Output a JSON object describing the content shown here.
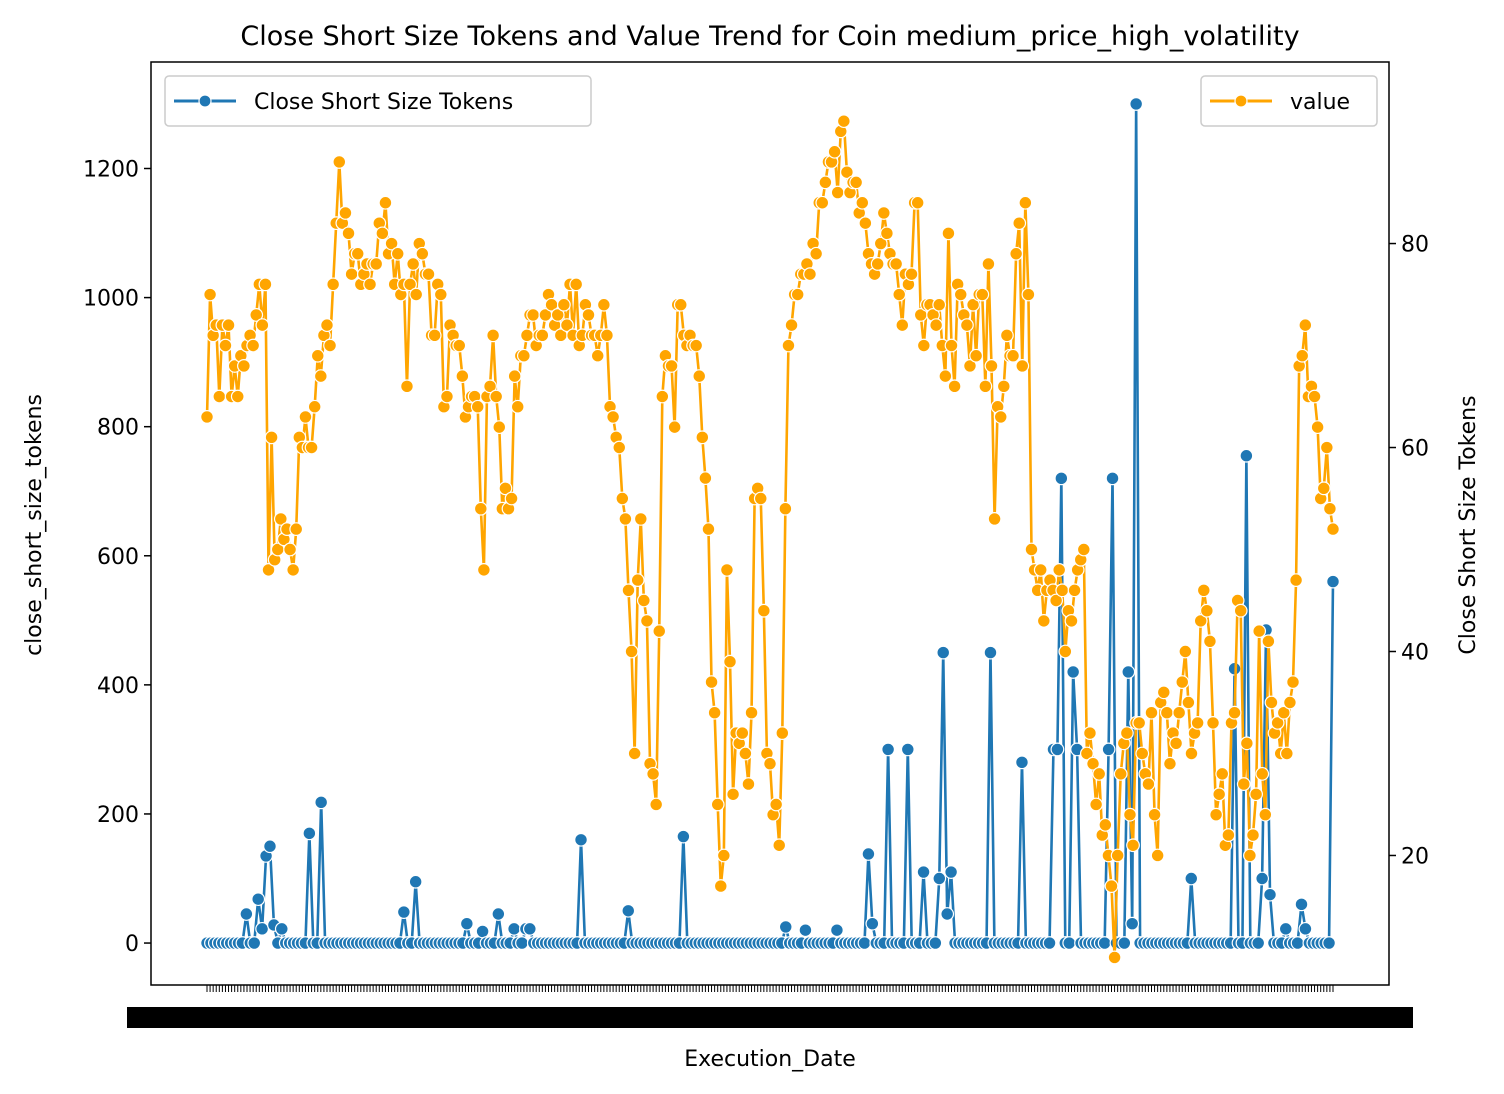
{
  "chart_data": {
    "type": "line",
    "title": "Close Short Size Tokens and Value Trend for Coin medium_price_high_volatility",
    "xlabel": "Execution_Date",
    "ylabel_left": "close_short_size_tokens",
    "ylabel_right": "Close Short Size Tokens",
    "ylim_left": [
      -65,
      1365
    ],
    "ylim_right": [
      7.3,
      97.8
    ],
    "yticks_left": [
      0,
      200,
      400,
      600,
      800,
      1000,
      1200
    ],
    "yticks_right": [
      20,
      40,
      60,
      80
    ],
    "grid": false,
    "x_tick_labels_note": "dense, overlapping date tick labels (unreadable)",
    "legends": [
      {
        "placement": "upper-left",
        "label": "Close Short Size Tokens",
        "color": "#1f77b4"
      },
      {
        "placement": "upper-right",
        "label": "value",
        "color": "#ffa500"
      }
    ],
    "series": [
      {
        "name": "Close Short Size Tokens",
        "axis": "left",
        "color": "#1f77b4",
        "marker": "circle",
        "values": [
          0,
          0,
          0,
          0,
          0,
          0,
          0,
          0,
          0,
          0,
          45,
          0,
          0,
          68,
          22,
          135,
          150,
          28,
          0,
          22,
          0,
          0,
          0,
          0,
          0,
          0,
          170,
          0,
          0,
          218,
          0,
          0,
          0,
          0,
          0,
          0,
          0,
          0,
          0,
          0,
          0,
          0,
          0,
          0,
          0,
          0,
          0,
          0,
          0,
          0,
          48,
          0,
          0,
          95,
          0,
          0,
          0,
          0,
          0,
          0,
          0,
          0,
          0,
          0,
          0,
          0,
          30,
          0,
          0,
          0,
          18,
          0,
          0,
          0,
          45,
          0,
          0,
          0,
          22,
          0,
          0,
          22,
          22,
          0,
          0,
          0,
          0,
          0,
          0,
          0,
          0,
          0,
          0,
          0,
          0,
          160,
          0,
          0,
          0,
          0,
          0,
          0,
          0,
          0,
          0,
          0,
          0,
          50,
          0,
          0,
          0,
          0,
          0,
          0,
          0,
          0,
          0,
          0,
          0,
          0,
          0,
          165,
          0,
          0,
          0,
          0,
          0,
          0,
          0,
          0,
          0,
          0,
          0,
          0,
          0,
          0,
          0,
          0,
          0,
          0,
          0,
          0,
          0,
          0,
          0,
          0,
          0,
          25,
          0,
          0,
          0,
          0,
          20,
          0,
          0,
          0,
          0,
          0,
          0,
          0,
          20,
          0,
          0,
          0,
          0,
          0,
          0,
          0,
          138,
          30,
          0,
          0,
          0,
          300,
          0,
          0,
          0,
          0,
          300,
          0,
          0,
          0,
          110,
          0,
          0,
          0,
          100,
          450,
          45,
          110,
          0,
          0,
          0,
          0,
          0,
          0,
          0,
          0,
          0,
          450,
          0,
          0,
          0,
          0,
          0,
          0,
          0,
          280,
          0,
          0,
          0,
          0,
          0,
          0,
          0,
          300,
          300,
          720,
          0,
          0,
          420,
          300,
          0,
          0,
          0,
          0,
          0,
          0,
          0,
          300,
          720,
          0,
          0,
          0,
          420,
          30,
          1300,
          0,
          0,
          0,
          0,
          0,
          0,
          0,
          0,
          0,
          0,
          0,
          0,
          0,
          100,
          0,
          0,
          0,
          0,
          0,
          0,
          0,
          0,
          0,
          0,
          425,
          0,
          0,
          755,
          0,
          0,
          0,
          100,
          485,
          75,
          0,
          0,
          0,
          22,
          0,
          0,
          0,
          60,
          22,
          0,
          0,
          0,
          0,
          0,
          0,
          560
        ]
      },
      {
        "name": "value",
        "axis": "right",
        "color": "#ffa500",
        "marker": "circle",
        "values": [
          63,
          75,
          71,
          72,
          65,
          72,
          70,
          72,
          65,
          68,
          65,
          69,
          68,
          70,
          71,
          70,
          73,
          76,
          72,
          76,
          48,
          61,
          49,
          50,
          53,
          51,
          52,
          50,
          48,
          52,
          61,
          60,
          63,
          60,
          60,
          64,
          69,
          67,
          71,
          72,
          70,
          76,
          82,
          88,
          82,
          83,
          81,
          77,
          79,
          79,
          76,
          77,
          78,
          76,
          78,
          78,
          82,
          81,
          84,
          79,
          80,
          76,
          79,
          75,
          76,
          66,
          76,
          78,
          75,
          80,
          79,
          77,
          77,
          71,
          71,
          76,
          75,
          64,
          65,
          72,
          71,
          70,
          70,
          67,
          63,
          64,
          65,
          65,
          64,
          54,
          48,
          65,
          66,
          71,
          65,
          62,
          54,
          56,
          54,
          55,
          67,
          64,
          69,
          69,
          71,
          73,
          73,
          70,
          71,
          71,
          73,
          75,
          74,
          72,
          73,
          71,
          74,
          72,
          76,
          71,
          76,
          70,
          71,
          74,
          73,
          71,
          71,
          69,
          71,
          74,
          71,
          64,
          63,
          61,
          60,
          55,
          53,
          46,
          40,
          30,
          47,
          53,
          45,
          43,
          29,
          28,
          25,
          42,
          65,
          69,
          68,
          68,
          62,
          74,
          74,
          71,
          70,
          71,
          70,
          70,
          67,
          61,
          57,
          52,
          37,
          34,
          25,
          17,
          20,
          48,
          39,
          26,
          32,
          31,
          32,
          30,
          27,
          34,
          55,
          56,
          55,
          44,
          30,
          29,
          24,
          25,
          21,
          32,
          54,
          70,
          72,
          75,
          75,
          77,
          77,
          78,
          77,
          80,
          79,
          84,
          84,
          86,
          88,
          88,
          89,
          85,
          91,
          92,
          87,
          85,
          86,
          86,
          83,
          84,
          82,
          79,
          78,
          77,
          78,
          80,
          83,
          81,
          79,
          78,
          78,
          75,
          72,
          77,
          76,
          77,
          84,
          84,
          73,
          70,
          74,
          74,
          73,
          72,
          74,
          70,
          67,
          81,
          70,
          66,
          76,
          75,
          73,
          72,
          68,
          74,
          69,
          75,
          75,
          66,
          78,
          68,
          53,
          64,
          63,
          66,
          71,
          69,
          69,
          79,
          82,
          68,
          84,
          75,
          50,
          48,
          46,
          48,
          43,
          46,
          47,
          46,
          45,
          48,
          46,
          40,
          44,
          43,
          46,
          48,
          49,
          50,
          30,
          32,
          29,
          25,
          28,
          22,
          23,
          20,
          17,
          10,
          20,
          28,
          31,
          32,
          24,
          21,
          33,
          33,
          30,
          28,
          27,
          34,
          24,
          20,
          35,
          36,
          34,
          29,
          32,
          31,
          34,
          37,
          40,
          35,
          30,
          32,
          33,
          43,
          46,
          44,
          41,
          33,
          24,
          26,
          28,
          21,
          22,
          33,
          34,
          45,
          44,
          27,
          31,
          20,
          22,
          26,
          42,
          28,
          24,
          41,
          35,
          32,
          33,
          30,
          34,
          30,
          35,
          37,
          47,
          68,
          69,
          72,
          65,
          66,
          65,
          62,
          55,
          56,
          60,
          54,
          52
        ]
      }
    ]
  }
}
